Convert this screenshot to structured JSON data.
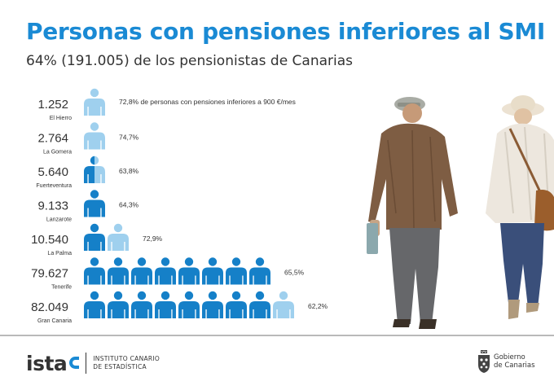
{
  "header": {
    "title": "Personas con pensiones inferiores al SMI",
    "subtitle": "64% (191.005) de los pensionistas de Canarias"
  },
  "colors": {
    "accent": "#1a8ad4",
    "icon_dark": "#1580c8",
    "icon_light": "#9fd0ee",
    "text": "#333333"
  },
  "chart_data": {
    "type": "pictogram",
    "title": "Personas con pensiones inferiores al SMI",
    "subtitle": "64% (191.005) de los pensionistas de Canarias",
    "categories": [
      "El Hierro",
      "La Gomera",
      "Fuerteventura",
      "Lanzarote",
      "La Palma",
      "Tenerife",
      "Gran Canaria"
    ],
    "series": [
      {
        "name": "",
        "value_labels": [
          "1.252",
          "2.764",
          "5.640",
          "9.133",
          "10.540",
          "79.627",
          "82.049"
        ],
        "values": [
          1252,
          2764,
          5640,
          9133,
          10540,
          79627,
          82049
        ]
      },
      {
        "name": "",
        "value_labels": [
          "72,8% de personas con pensiones inferiores a 900 €/mes",
          "74,7%",
          "63,8%",
          "64,3%",
          "72,9%",
          "65,5%",
          "62,2%"
        ],
        "values": [
          72.8,
          74.7,
          63.8,
          64.3,
          72.9,
          65.5,
          62.2
        ]
      }
    ],
    "icons": {
      "full_dark": [
        0,
        0,
        0,
        1,
        1,
        8,
        8
      ],
      "partial": [
        "light",
        "light",
        "half",
        "none",
        "light",
        "none",
        "light"
      ]
    }
  },
  "footer": {
    "logo_istac_prefix": "ista",
    "logo_istac_line1": "INSTITUTO CANARIO",
    "logo_istac_line2": "DE ESTADÍSTICA",
    "logo_gob_line1": "Gobierno",
    "logo_gob_line2": "de Canarias",
    "crest_icon": "coat-of-arms-icon",
    "photo": "elderly-couple-walking-photo"
  }
}
